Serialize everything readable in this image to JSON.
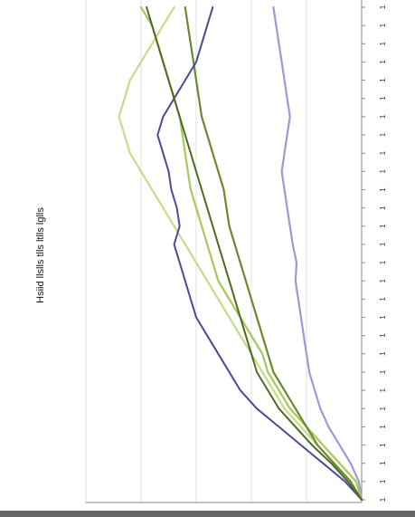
{
  "chart_data": {
    "type": "line",
    "orientation": "rotated",
    "title": "",
    "ylabel": "Hsiid llslls tlls ltlls lglls",
    "xlabel": "",
    "grid": true,
    "legend": "none",
    "x": [
      0,
      1,
      2,
      3,
      4,
      5,
      6,
      7,
      8,
      9,
      10,
      11,
      12,
      13,
      14,
      15,
      16,
      17,
      18,
      19,
      20,
      21,
      22,
      23,
      24,
      25,
      26,
      27
    ],
    "x_ticks": [
      "1",
      "1",
      "1",
      "1",
      "1",
      "1",
      "1",
      "1",
      "1",
      "1",
      "1",
      "1",
      "1",
      "1",
      "1",
      "1",
      "1",
      "1",
      "1",
      "1",
      "1",
      "1",
      "1",
      "1",
      "1",
      "1",
      "1",
      "1"
    ],
    "ylim": [
      0,
      5
    ],
    "series": [
      {
        "color": "#9a9ad8",
        "width": 2.2,
        "values": [
          0.0,
          0.05,
          0.2,
          0.4,
          0.6,
          0.75,
          0.85,
          0.95,
          1.0,
          1.05,
          1.1,
          1.15,
          1.2,
          1.18,
          1.25,
          1.3,
          1.35,
          1.4,
          1.45,
          1.4,
          1.35,
          1.3,
          1.35,
          1.4,
          1.45,
          1.5,
          1.55,
          1.6
        ]
      },
      {
        "color": "#a8c85a",
        "width": 2.2,
        "values": [
          0.0,
          0.1,
          0.4,
          0.7,
          1.0,
          1.3,
          1.5,
          1.7,
          1.8,
          2.0,
          2.2,
          2.4,
          2.6,
          2.7,
          2.8,
          2.9,
          3.0,
          3.1,
          3.15,
          3.2,
          3.25,
          3.3,
          3.4,
          3.5,
          3.6,
          3.7,
          3.8,
          4.0
        ]
      },
      {
        "color": "#c8dc88",
        "width": 2.2,
        "values": [
          0.0,
          0.2,
          0.5,
          0.8,
          1.1,
          1.4,
          1.6,
          1.8,
          2.0,
          2.2,
          2.4,
          2.6,
          2.8,
          3.0,
          3.2,
          3.4,
          3.6,
          3.8,
          4.0,
          4.2,
          4.3,
          4.4,
          4.3,
          4.2,
          4.0,
          3.8,
          3.6,
          3.4
        ]
      },
      {
        "color": "#6a8a30",
        "width": 2.2,
        "values": [
          0.0,
          0.2,
          0.5,
          0.8,
          1.0,
          1.2,
          1.4,
          1.6,
          1.7,
          1.8,
          1.9,
          2.0,
          2.1,
          2.2,
          2.3,
          2.4,
          2.45,
          2.5,
          2.6,
          2.7,
          2.8,
          2.9,
          2.95,
          3.0,
          3.05,
          3.1,
          3.15,
          3.2
        ]
      },
      {
        "color": "#4a4a9a",
        "width": 2.0,
        "values": [
          0.0,
          0.3,
          0.7,
          1.1,
          1.5,
          1.9,
          2.2,
          2.4,
          2.6,
          2.8,
          3.0,
          3.1,
          3.2,
          3.3,
          3.4,
          3.3,
          3.35,
          3.45,
          3.5,
          3.6,
          3.7,
          3.6,
          3.4,
          3.2,
          3.0,
          2.9,
          2.8,
          2.7
        ]
      },
      {
        "color": "#4f6a22",
        "width": 2.0,
        "values": [
          0.0,
          0.25,
          0.55,
          0.9,
          1.2,
          1.5,
          1.7,
          1.9,
          2.0,
          2.1,
          2.2,
          2.3,
          2.4,
          2.5,
          2.6,
          2.7,
          2.8,
          2.9,
          3.0,
          3.1,
          3.2,
          3.3,
          3.4,
          3.5,
          3.6,
          3.7,
          3.8,
          3.9
        ]
      }
    ]
  }
}
